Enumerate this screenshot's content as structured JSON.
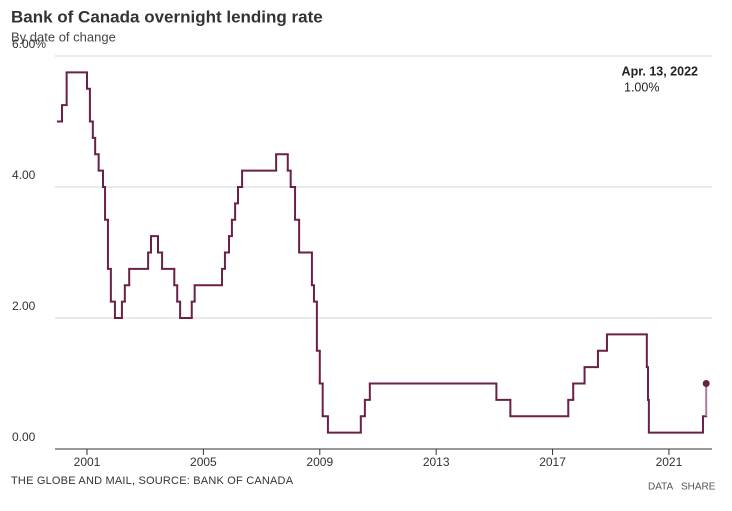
{
  "chart_data": {
    "type": "line",
    "drawstyle": "steps-post",
    "title": "Bank of Canada overnight lending rate",
    "subtitle": "By date of change",
    "source": "THE GLOBE AND MAIL, SOURCE: BANK OF CANADA",
    "buttons": [
      "DATA",
      "SHARE"
    ],
    "annotation": {
      "date": "Apr. 13, 2022",
      "value_label": "1.00%",
      "value": 1.0
    },
    "color": "#6b2046",
    "x": [
      2000.0,
      2000.14,
      2000.3,
      2001.0,
      2001.1,
      2001.2,
      2001.28,
      2001.4,
      2001.55,
      2001.62,
      2001.72,
      2001.82,
      2001.96,
      2002.2,
      2002.3,
      2002.45,
      2003.1,
      2003.2,
      2003.44,
      2003.58,
      2004.0,
      2004.1,
      2004.2,
      2004.6,
      2004.7,
      2005.64,
      2005.74,
      2005.88,
      2005.98,
      2006.09,
      2006.19,
      2006.33,
      2007.5,
      2007.9,
      2008.0,
      2008.15,
      2008.29,
      2008.73,
      2008.8,
      2008.9,
      2009.0,
      2009.1,
      2009.28,
      2010.41,
      2010.55,
      2010.72,
      2015.07,
      2015.55,
      2017.54,
      2017.71,
      2018.1,
      2018.56,
      2018.87,
      2020.24,
      2020.28,
      2020.31,
      2022.17,
      2022.28
    ],
    "values": [
      5.0,
      5.25,
      5.75,
      5.5,
      5.0,
      4.75,
      4.5,
      4.25,
      4.0,
      3.5,
      2.75,
      2.25,
      2.0,
      2.25,
      2.5,
      2.75,
      3.0,
      3.25,
      3.0,
      2.75,
      2.5,
      2.25,
      2.0,
      2.25,
      2.5,
      2.75,
      3.0,
      3.25,
      3.5,
      3.75,
      4.0,
      4.25,
      4.5,
      4.25,
      4.0,
      3.5,
      3.0,
      2.5,
      2.25,
      1.5,
      1.0,
      0.5,
      0.25,
      0.5,
      0.75,
      1.0,
      0.75,
      0.5,
      0.75,
      1.0,
      1.25,
      1.5,
      1.75,
      1.25,
      0.75,
      0.25,
      0.5,
      1.0
    ],
    "xlim": [
      1999.9,
      2022.48
    ],
    "xticks": [
      2001,
      2005,
      2009,
      2013,
      2017,
      2021
    ],
    "ylim": [
      0,
      6
    ],
    "yticks": [
      {
        "value": 0,
        "label": "0.00"
      },
      {
        "value": 2,
        "label": "2.00"
      },
      {
        "value": 4,
        "label": "4.00"
      },
      {
        "value": 6,
        "label": "6.00%"
      }
    ],
    "grid": true
  }
}
